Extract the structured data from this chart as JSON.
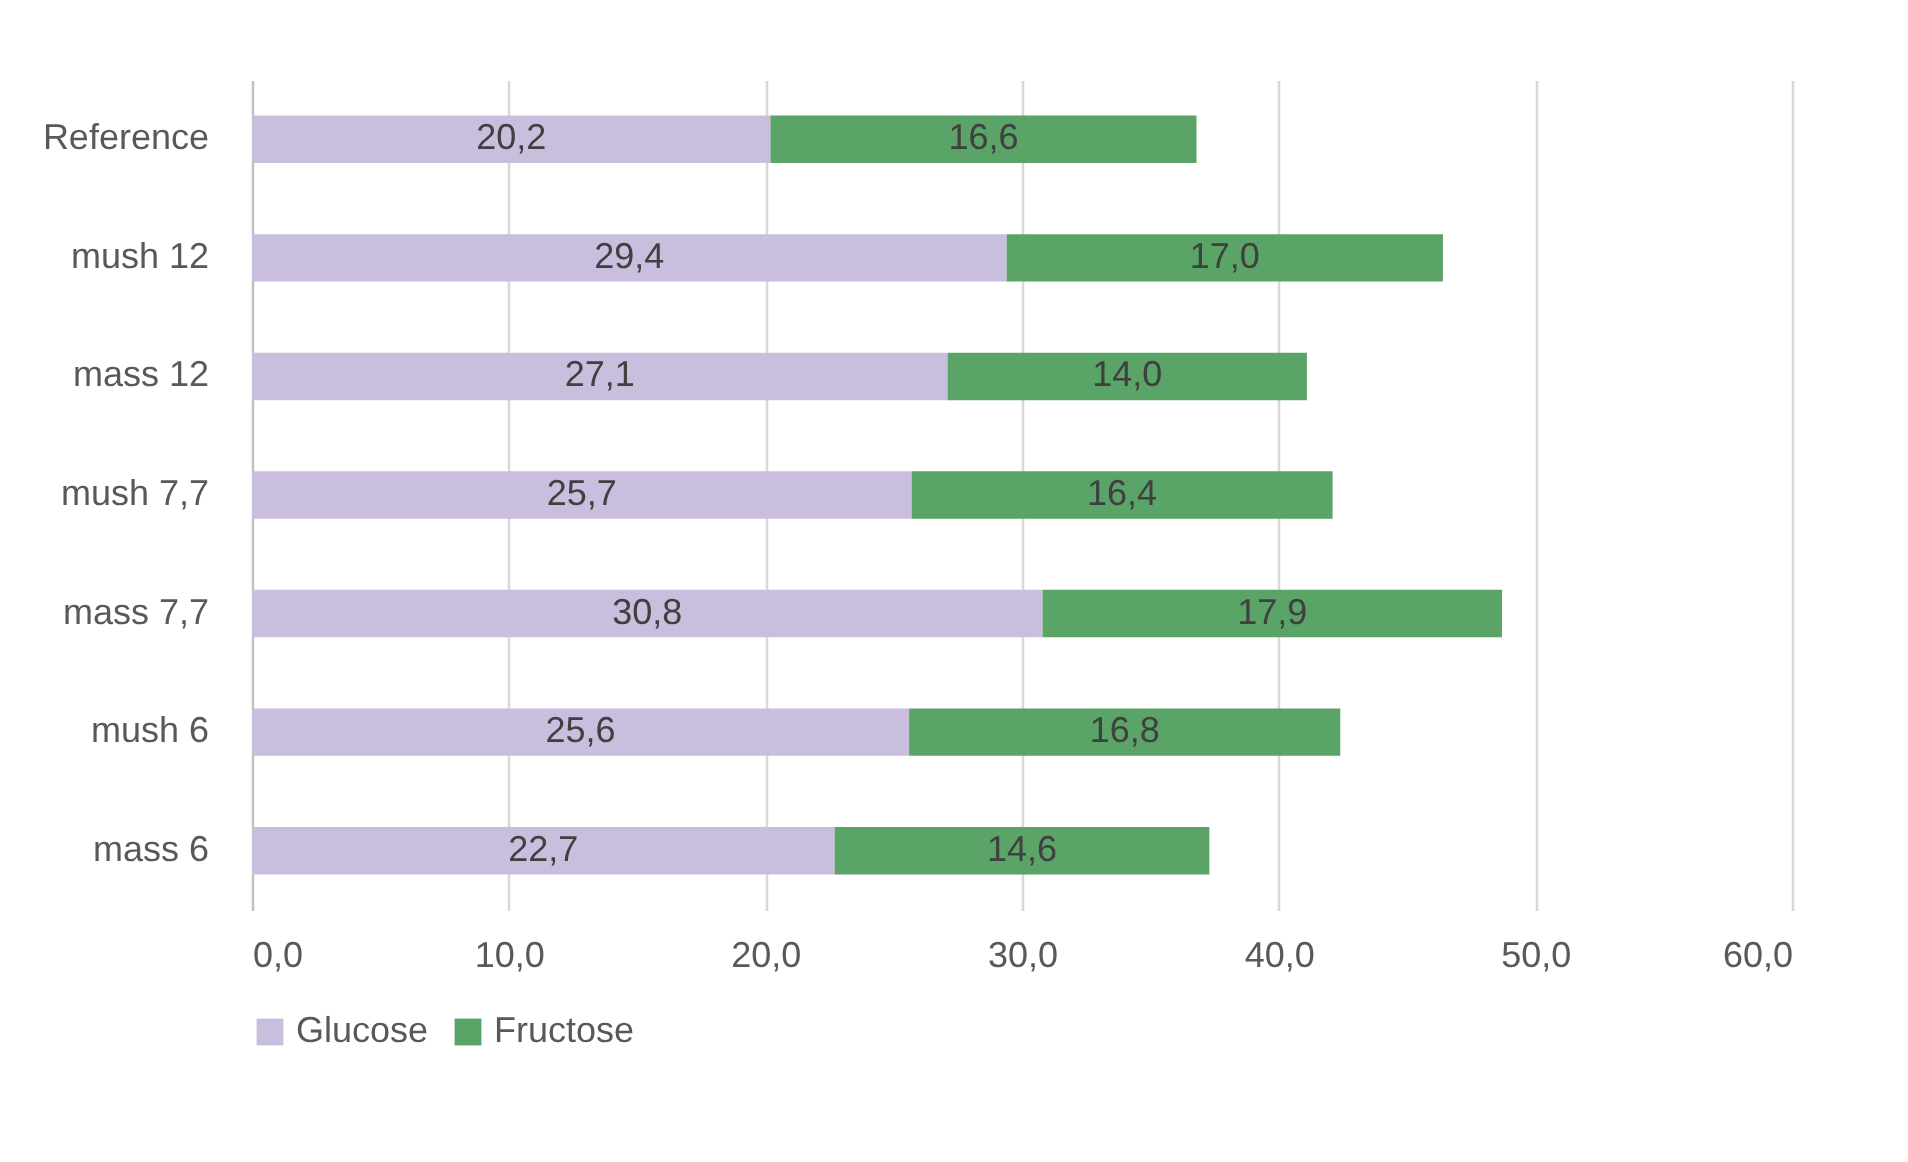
{
  "chart_data": {
    "type": "bar",
    "orientation": "horizontal",
    "stacked": true,
    "categories": [
      "Reference",
      "mush 12",
      "mass 12",
      "mush 7,7",
      "mass 7,7",
      "mush 6",
      "mass 6"
    ],
    "series": [
      {
        "name": "Glucose",
        "color": "#c9bedd",
        "values": [
          20.2,
          29.4,
          27.1,
          25.7,
          30.8,
          25.6,
          22.7
        ],
        "value_labels": [
          "20,2",
          "29,4",
          "27,1",
          "25,7",
          "30,8",
          "25,6",
          "22,7"
        ]
      },
      {
        "name": "Fructose",
        "color": "#5ba467",
        "values": [
          16.6,
          17.0,
          14.0,
          16.4,
          17.9,
          16.8,
          14.6
        ],
        "value_labels": [
          "16,6",
          "17,0",
          "14,0",
          "16,4",
          "17,9",
          "16,8",
          "14,6"
        ]
      }
    ],
    "xlim": [
      0,
      60
    ],
    "xticks": [
      {
        "value": 0,
        "label": "0,0"
      },
      {
        "value": 10,
        "label": "10,0"
      },
      {
        "value": 20,
        "label": "20,0"
      },
      {
        "value": 30,
        "label": "30,0"
      },
      {
        "value": 40,
        "label": "40,0"
      },
      {
        "value": 50,
        "label": "50,0"
      },
      {
        "value": 60,
        "label": "60,0"
      }
    ],
    "grid": "x",
    "legend": "bottom"
  }
}
